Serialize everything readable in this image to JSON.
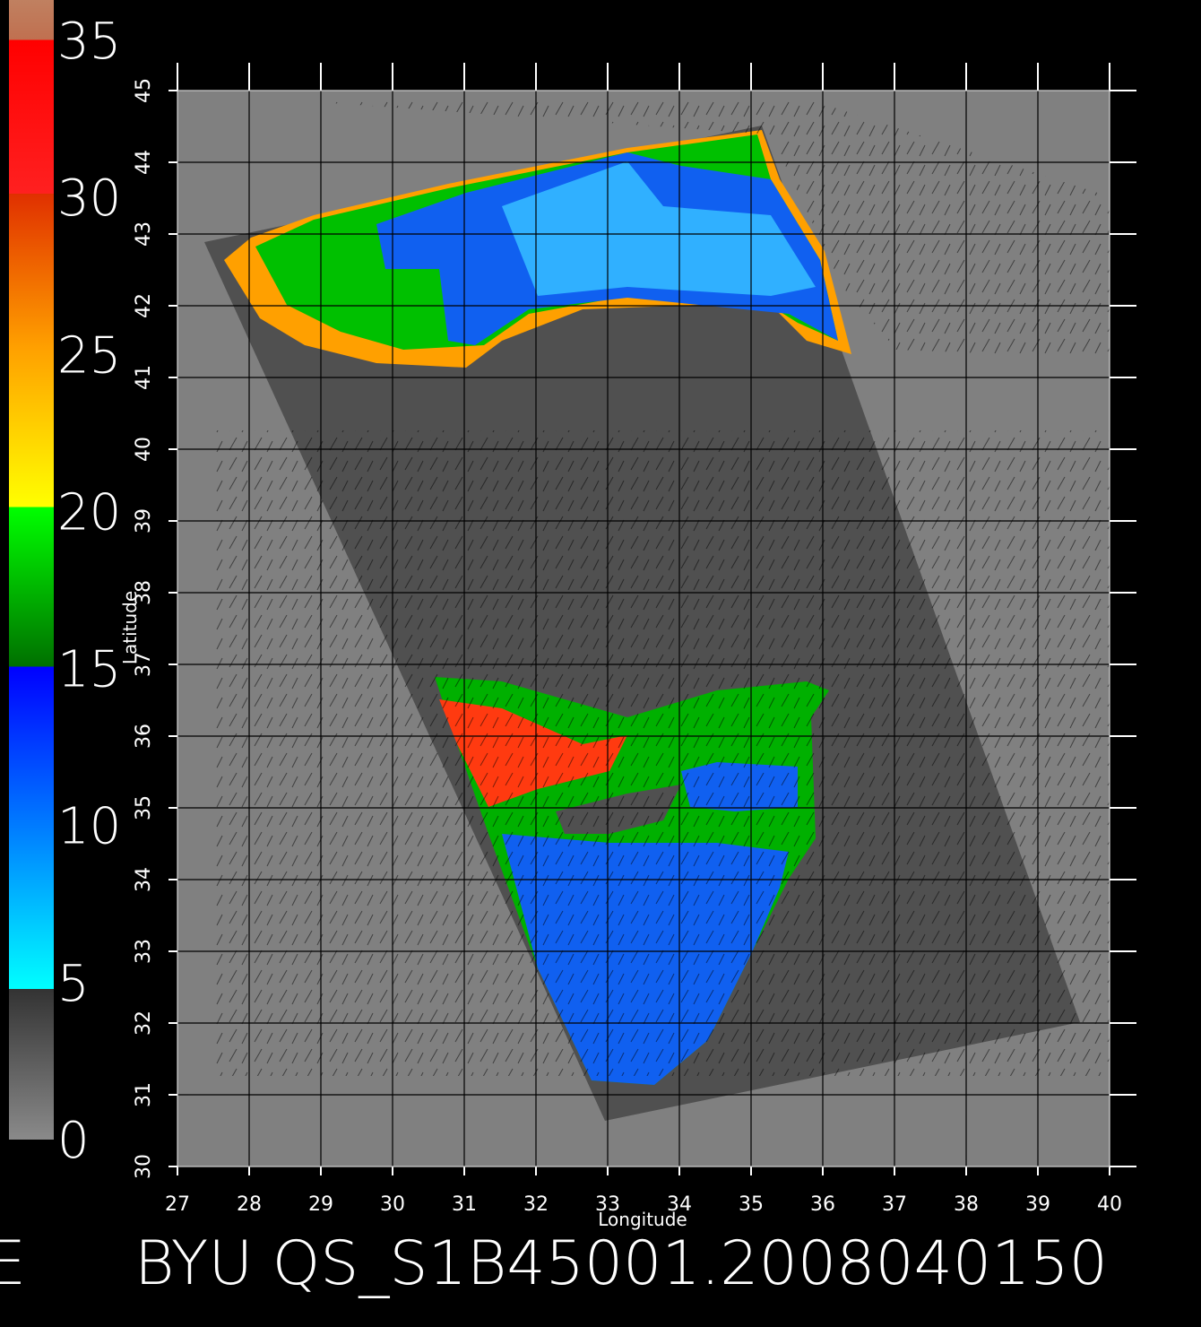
{
  "colorbar": {
    "lim": [
      0,
      35
    ],
    "ticks": [
      0,
      5,
      10,
      15,
      20,
      25,
      30,
      35
    ]
  },
  "map": {
    "xlabel": "Longitude",
    "ylabel": "Latitude",
    "xlim": [
      27,
      40
    ],
    "ylim": [
      30,
      45
    ],
    "xticks": [
      27,
      28,
      29,
      30,
      31,
      32,
      33,
      34,
      35,
      36,
      37,
      38,
      39,
      40
    ],
    "yticks": [
      30,
      31,
      32,
      33,
      34,
      35,
      36,
      37,
      38,
      39,
      40,
      41,
      42,
      43,
      44,
      45
    ]
  },
  "title": "BYU  QS_S1B45001.2008040150",
  "edge_label": "E"
}
